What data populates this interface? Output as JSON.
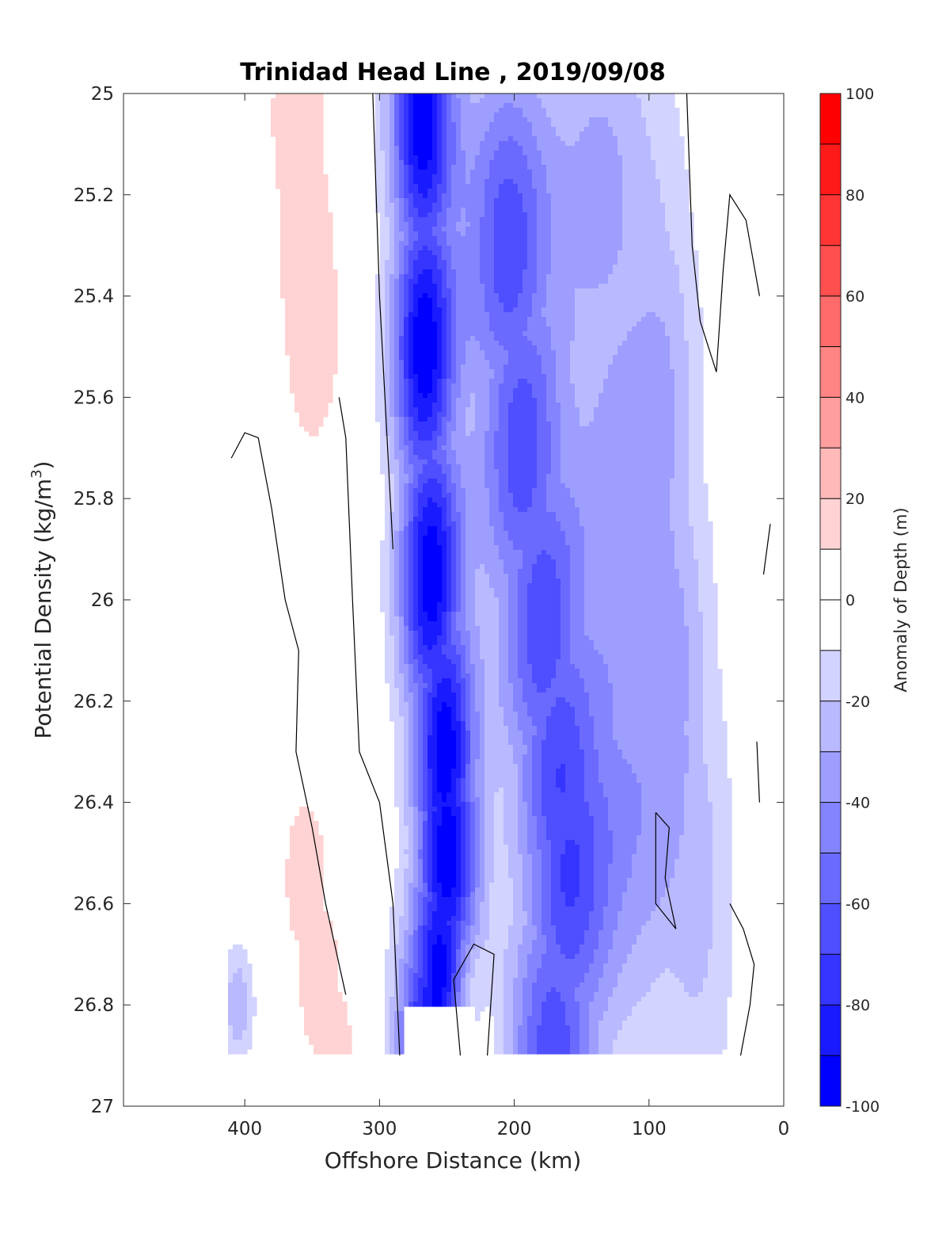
{
  "chart_data": {
    "type": "heatmap",
    "subtype": "filled-contour",
    "title": "Trinidad Head Line , 2019/09/08",
    "xlabel": "Offshore Distance (km)",
    "ylabel_main": "Potential Density (kg/m",
    "ylabel_sup": "3",
    "ylabel_close": ")",
    "colorbar_label": "Anomaly of Depth (m)",
    "x_reversed": true,
    "xlim": [
      490,
      0
    ],
    "ylim": [
      25,
      27
    ],
    "y_reversed": true,
    "x_ticks": [
      "400",
      "300",
      "200",
      "100",
      "0"
    ],
    "x_tick_values": [
      400,
      300,
      200,
      100,
      0
    ],
    "y_ticks": [
      "25",
      "25.2",
      "25.4",
      "25.6",
      "25.8",
      "26",
      "26.2",
      "26.4",
      "26.6",
      "26.8",
      "27"
    ],
    "y_tick_values": [
      25,
      25.2,
      25.4,
      25.6,
      25.8,
      26,
      26.2,
      26.4,
      26.6,
      26.8,
      27
    ],
    "colorbar_ticks": [
      "100",
      "80",
      "60",
      "40",
      "20",
      "0",
      "-20",
      "-40",
      "-60",
      "-80",
      "-100"
    ],
    "colorbar_tick_values": [
      100,
      80,
      60,
      40,
      20,
      0,
      -20,
      -40,
      -60,
      -80,
      -100
    ],
    "colorbar_limits": [
      -100,
      100
    ],
    "contour_step": 10,
    "zero_contour": "black",
    "data_y_range": [
      25,
      26.9
    ],
    "colormap": "blue-white-red",
    "grid": false,
    "fields": [
      {
        "name": "inshore_neg_anomaly",
        "center_x": 265,
        "center_y": 26.45,
        "peak": -100
      },
      {
        "name": "midshelf_neg_anomaly",
        "center_x": 165,
        "center_y": 26.55,
        "peak": -80
      },
      {
        "name": "offshore_pos_anomaly",
        "center_x": 355,
        "center_y": 25.15,
        "peak": 20
      }
    ]
  },
  "colors": {
    "negative_max": "#0000ff",
    "positive_max": "#ff0000",
    "zero": "#ffffff",
    "contour": "#000000",
    "axes": "#262626"
  }
}
